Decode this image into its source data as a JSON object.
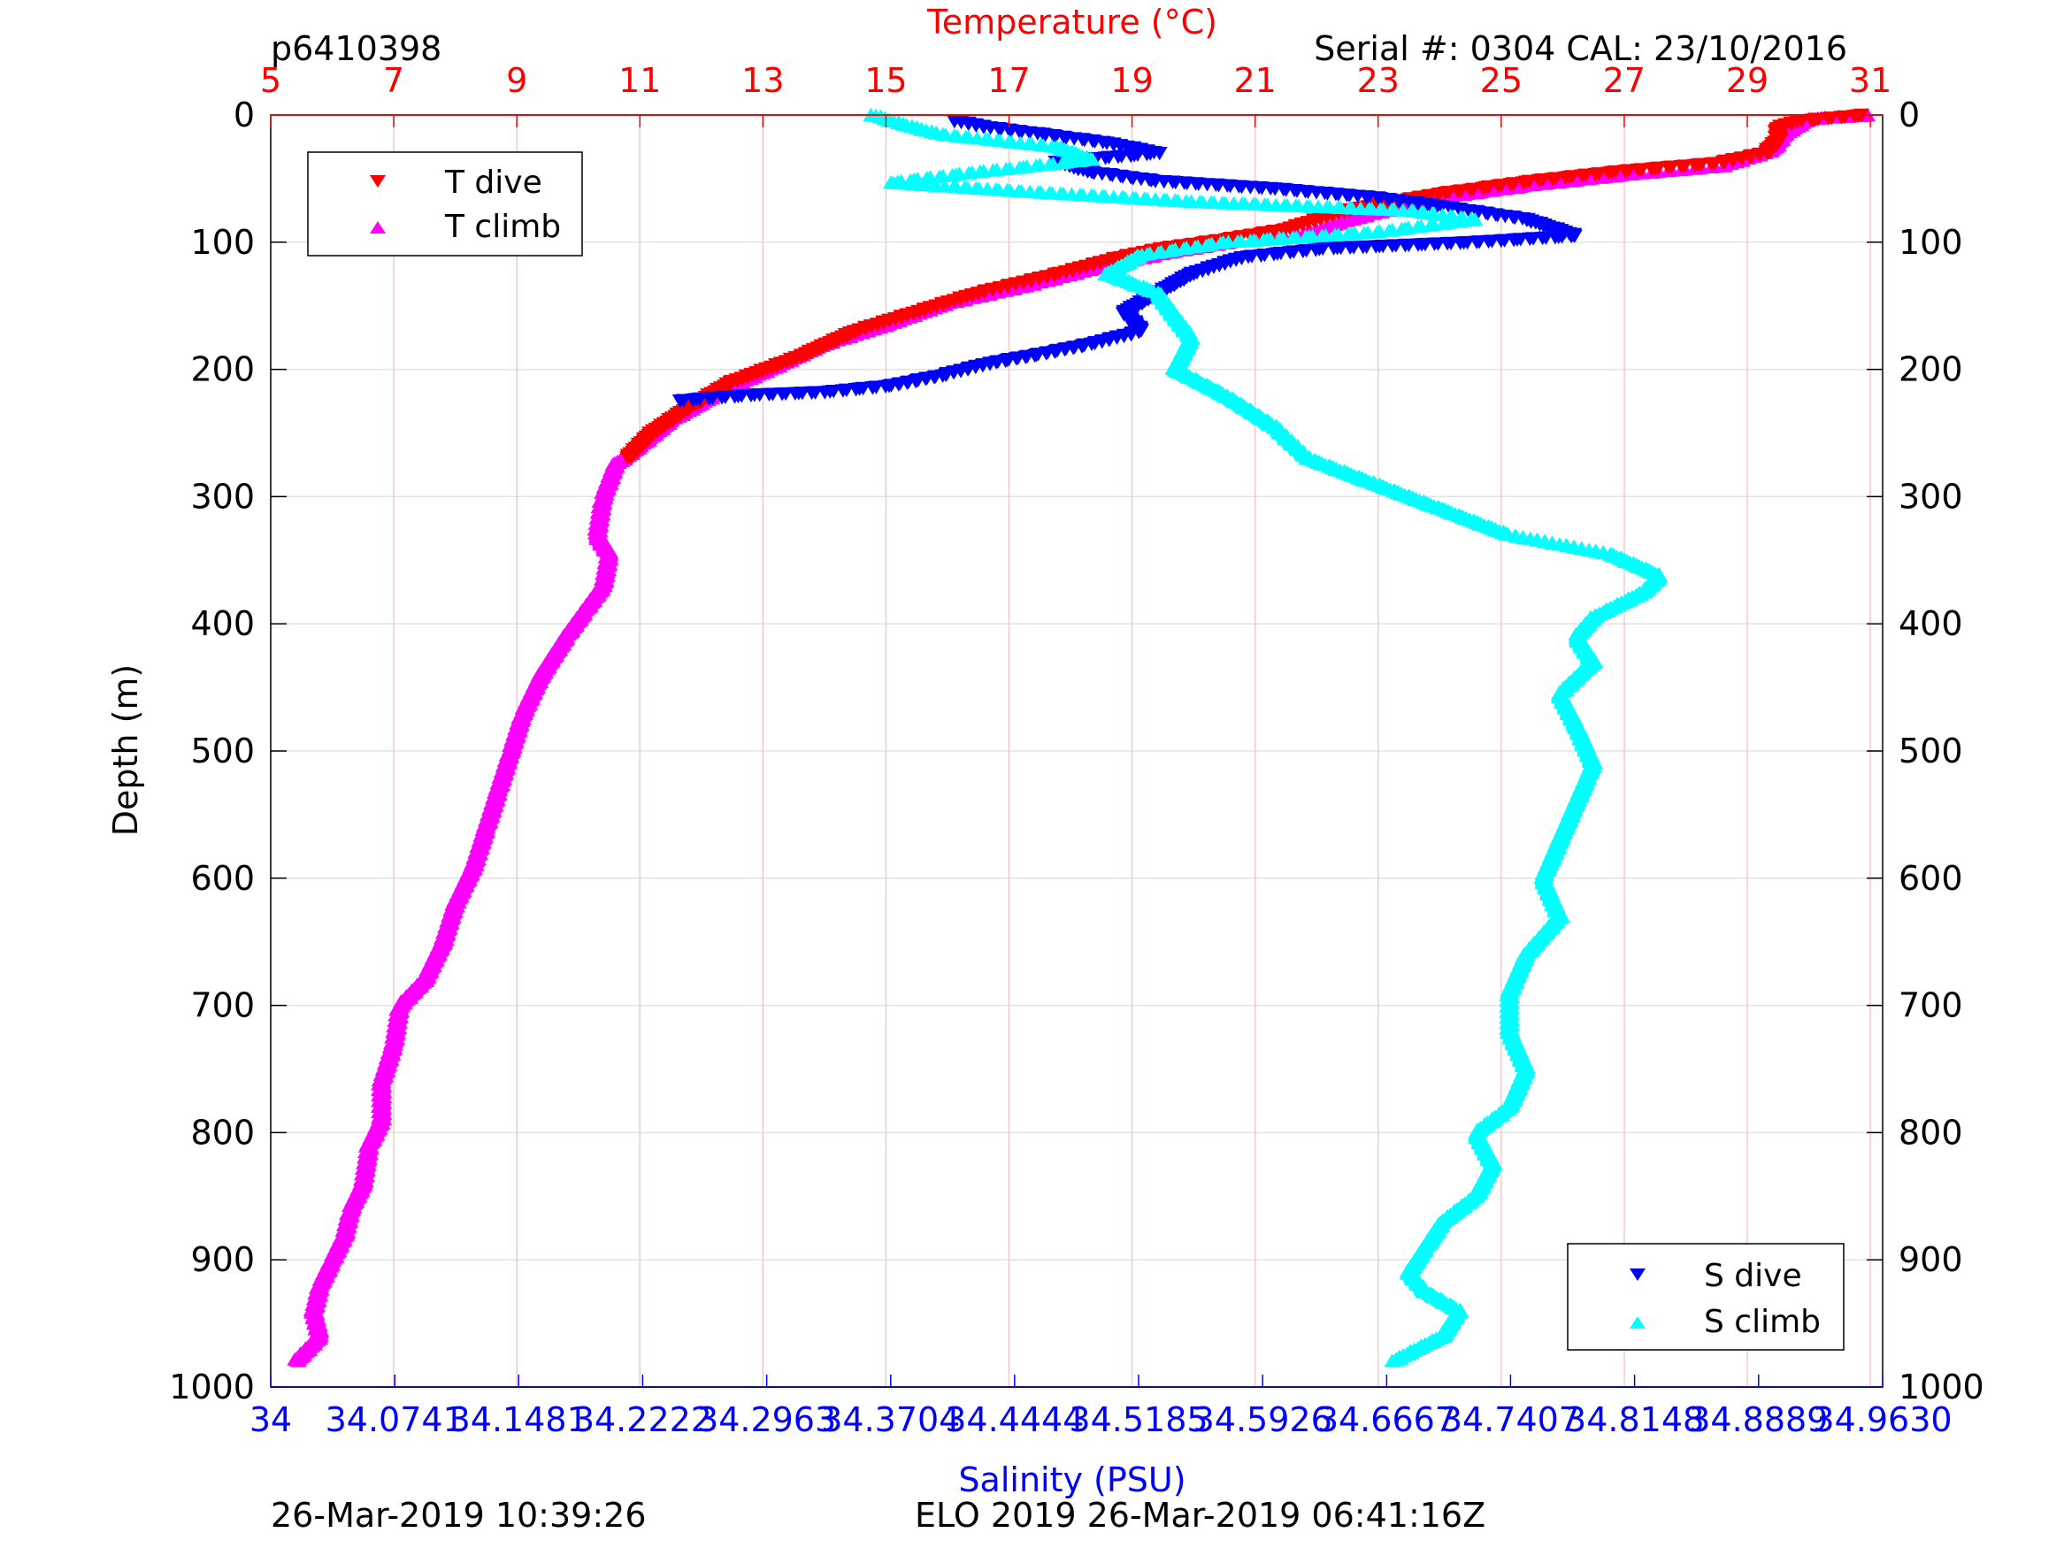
{
  "header": {
    "profile_id": "p6410398",
    "serial": "Serial #: 0304  CAL: 23/10/2016"
  },
  "footer": {
    "left": "26-Mar-2019 10:39:26",
    "center": "ELO 2019 26-Mar-2019 06:41:16Z"
  },
  "chart_data": {
    "type": "scatter",
    "title": "",
    "ylabel": "Depth (m)",
    "ylim": [
      1000,
      0
    ],
    "y_ticks": [
      "0",
      "100",
      "200",
      "300",
      "400",
      "500",
      "600",
      "700",
      "800",
      "900",
      "1000"
    ],
    "temperature_axis": {
      "label": "Temperature (°C)",
      "position": "top",
      "range": [
        5,
        31.2
      ],
      "ticks": [
        "5",
        "7",
        "9",
        "11",
        "13",
        "15",
        "17",
        "19",
        "21",
        "23",
        "25",
        "27",
        "29",
        "31"
      ],
      "color": "#ff0000"
    },
    "salinity_axis": {
      "label": "Salinity (PSU)",
      "position": "bottom",
      "range": [
        34,
        34.963
      ],
      "ticks": [
        "34",
        "34.0741",
        "34.1481",
        "34.2222",
        "34.2963",
        "34.3704",
        "34.4444",
        "34.5185",
        "34.5926",
        "34.6667",
        "34.7407",
        "34.8148",
        "34.8889",
        "34.9630"
      ],
      "color": "#0000ff"
    },
    "grid": {
      "vertical": true,
      "horizontal": true,
      "vertical_color": "#f4c9c9",
      "horizontal_color": "#e2e2e2"
    },
    "legends": [
      {
        "placement": "top-left",
        "entries": [
          {
            "label": "T dive",
            "marker": "triangle-down",
            "color": "#ff0000"
          },
          {
            "label": "T climb",
            "marker": "triangle-up",
            "color": "#ff00ff"
          }
        ]
      },
      {
        "placement": "bottom-right",
        "entries": [
          {
            "label": "S dive",
            "marker": "triangle-down",
            "color": "#0000ff"
          },
          {
            "label": "S climb",
            "marker": "triangle-up",
            "color": "#00ffff"
          }
        ]
      }
    ],
    "series": [
      {
        "name": "T dive",
        "axis": "temperature",
        "marker": "triangle-down",
        "color": "#ff0000",
        "points": [
          [
            30.9,
            0
          ],
          [
            29.8,
            5
          ],
          [
            29.5,
            10
          ],
          [
            29.5,
            20
          ],
          [
            29.3,
            30
          ],
          [
            28.5,
            38
          ],
          [
            27,
            44
          ],
          [
            25.5,
            52
          ],
          [
            24,
            62
          ],
          [
            22.5,
            75
          ],
          [
            21.5,
            90
          ],
          [
            20.5,
            98
          ],
          [
            19.5,
            105
          ],
          [
            18.8,
            112
          ],
          [
            17.8,
            125
          ],
          [
            16.5,
            140
          ],
          [
            15.5,
            155
          ],
          [
            14.5,
            170
          ],
          [
            13.6,
            190
          ],
          [
            12.5,
            210
          ],
          [
            11.8,
            230
          ],
          [
            11.2,
            250
          ],
          [
            10.8,
            270
          ]
        ]
      },
      {
        "name": "T climb",
        "axis": "temperature",
        "marker": "triangle-up",
        "color": "#ff00ff",
        "points": [
          [
            31,
            0
          ],
          [
            30,
            3
          ],
          [
            29.6,
            15
          ],
          [
            29.4,
            28
          ],
          [
            28.6,
            40
          ],
          [
            27.2,
            46
          ],
          [
            25.5,
            55
          ],
          [
            24,
            65
          ],
          [
            22.7,
            80
          ],
          [
            21.8,
            93
          ],
          [
            20.6,
            100
          ],
          [
            19.6,
            108
          ],
          [
            18.6,
            118
          ],
          [
            17.2,
            135
          ],
          [
            16,
            148
          ],
          [
            15,
            165
          ],
          [
            14,
            180
          ],
          [
            13.2,
            198
          ],
          [
            12.4,
            215
          ],
          [
            11.5,
            240
          ],
          [
            11,
            260
          ],
          [
            10.6,
            275
          ],
          [
            10.4,
            300
          ],
          [
            10.3,
            330
          ],
          [
            10.5,
            345
          ],
          [
            10.4,
            370
          ],
          [
            10.1,
            390
          ],
          [
            9.8,
            410
          ],
          [
            9.4,
            440
          ],
          [
            9.1,
            470
          ],
          [
            8.9,
            500
          ],
          [
            8.7,
            530
          ],
          [
            8.5,
            560
          ],
          [
            8.3,
            590
          ],
          [
            8.0,
            620
          ],
          [
            7.8,
            650
          ],
          [
            7.5,
            680
          ],
          [
            7.1,
            700
          ],
          [
            7.0,
            730
          ],
          [
            6.8,
            760
          ],
          [
            6.8,
            790
          ],
          [
            6.6,
            810
          ],
          [
            6.5,
            840
          ],
          [
            6.3,
            860
          ],
          [
            6.2,
            880
          ],
          [
            6.0,
            900
          ],
          [
            5.8,
            920
          ],
          [
            5.7,
            940
          ],
          [
            5.8,
            960
          ],
          [
            5.4,
            980
          ]
        ]
      },
      {
        "name": "S dive",
        "axis": "salinity",
        "marker": "triangle-down",
        "color": "#0000ff",
        "points": [
          [
            34.41,
            5
          ],
          [
            34.43,
            10
          ],
          [
            34.46,
            15
          ],
          [
            34.5,
            22
          ],
          [
            34.53,
            30
          ],
          [
            34.47,
            37
          ],
          [
            34.49,
            45
          ],
          [
            34.53,
            52
          ],
          [
            34.6,
            58
          ],
          [
            34.66,
            65
          ],
          [
            34.7,
            72
          ],
          [
            34.75,
            82
          ],
          [
            34.78,
            95
          ],
          [
            34.72,
            100
          ],
          [
            34.63,
            105
          ],
          [
            34.58,
            112
          ],
          [
            34.55,
            125
          ],
          [
            34.53,
            140
          ],
          [
            34.51,
            155
          ],
          [
            34.52,
            170
          ],
          [
            34.49,
            180
          ],
          [
            34.46,
            188
          ],
          [
            34.43,
            195
          ],
          [
            34.4,
            205
          ],
          [
            34.37,
            213
          ],
          [
            34.33,
            218
          ],
          [
            34.29,
            220
          ],
          [
            34.24,
            225
          ]
        ]
      },
      {
        "name": "S climb",
        "axis": "salinity",
        "marker": "triangle-up",
        "color": "#00ffff",
        "points": [
          [
            34.36,
            0
          ],
          [
            34.38,
            8
          ],
          [
            34.4,
            15
          ],
          [
            34.47,
            25
          ],
          [
            34.49,
            35
          ],
          [
            34.42,
            45
          ],
          [
            34.37,
            53
          ],
          [
            34.45,
            60
          ],
          [
            34.55,
            68
          ],
          [
            34.68,
            75
          ],
          [
            34.72,
            82
          ],
          [
            34.66,
            92
          ],
          [
            34.57,
            100
          ],
          [
            34.52,
            110
          ],
          [
            34.5,
            125
          ],
          [
            34.53,
            140
          ],
          [
            34.54,
            158
          ],
          [
            34.55,
            175
          ],
          [
            34.54,
            200
          ],
          [
            34.57,
            220
          ],
          [
            34.6,
            245
          ],
          [
            34.62,
            270
          ],
          [
            34.66,
            290
          ],
          [
            34.7,
            310
          ],
          [
            34.74,
            330
          ],
          [
            34.8,
            345
          ],
          [
            34.83,
            362
          ],
          [
            34.82,
            375
          ],
          [
            34.79,
            395
          ],
          [
            34.78,
            410
          ],
          [
            34.79,
            430
          ],
          [
            34.77,
            455
          ],
          [
            34.78,
            480
          ],
          [
            34.79,
            510
          ],
          [
            34.78,
            540
          ],
          [
            34.77,
            570
          ],
          [
            34.76,
            600
          ],
          [
            34.77,
            630
          ],
          [
            34.75,
            660
          ],
          [
            34.74,
            690
          ],
          [
            34.74,
            720
          ],
          [
            34.75,
            750
          ],
          [
            34.74,
            780
          ],
          [
            34.72,
            800
          ],
          [
            34.73,
            825
          ],
          [
            34.72,
            850
          ],
          [
            34.7,
            870
          ],
          [
            34.69,
            890
          ],
          [
            34.68,
            910
          ],
          [
            34.69,
            925
          ],
          [
            34.71,
            940
          ],
          [
            34.7,
            960
          ],
          [
            34.67,
            980
          ]
        ]
      }
    ],
    "legend_labels": {
      "t_dive": "T dive",
      "t_climb": "T climb",
      "s_dive": "S dive",
      "s_climb": "S climb"
    }
  }
}
